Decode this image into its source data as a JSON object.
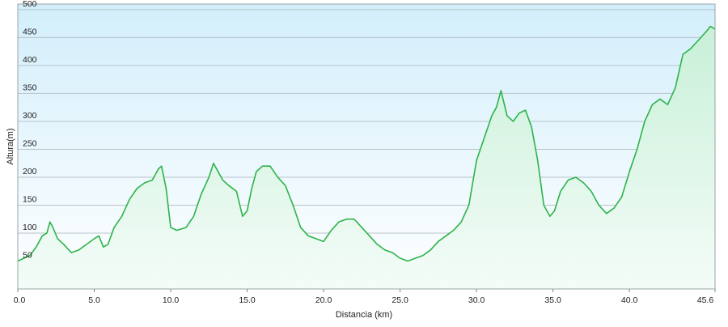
{
  "chart_data": {
    "type": "area",
    "xlabel": "Distancia  (km)",
    "ylabel": "Altura(m)",
    "xlim": [
      0,
      45.6
    ],
    "ylim": [
      0,
      510
    ],
    "x_ticks": [
      0,
      5,
      10,
      15,
      20,
      25,
      30,
      35,
      40,
      45.6
    ],
    "x_tick_labels": [
      "0.0",
      "5.0",
      "10.0",
      "15.0",
      "20.0",
      "25.0",
      "30.0",
      "35.0",
      "40.0",
      "45.6"
    ],
    "y_ticks": [
      50,
      100,
      150,
      200,
      250,
      300,
      350,
      400,
      450,
      500
    ],
    "y_tick_labels": [
      "50",
      "100",
      "150",
      "200",
      "250",
      "300",
      "350",
      "400",
      "450",
      "500"
    ],
    "grid": true,
    "colors": {
      "line": "#2db34a",
      "fill_top": "#c8f0d8",
      "fill_bottom": "#f4fcf8",
      "bg_top": "#d2eefb",
      "bg_bottom": "#ffffff"
    },
    "series": [
      {
        "x": [
          0,
          0.4,
          0.8,
          1.2,
          1.6,
          1.9,
          2.1,
          2.3,
          2.6,
          3.0,
          3.5,
          4.0,
          4.5,
          5.0,
          5.3,
          5.6,
          5.9,
          6.3,
          6.8,
          7.3,
          7.8,
          8.3,
          8.8,
          9.2,
          9.4,
          9.7,
          10.0,
          10.4,
          11.0,
          11.5,
          12.0,
          12.5,
          12.8,
          13.1,
          13.4,
          13.8,
          14.3,
          14.7,
          15.0,
          15.3,
          15.6,
          16.0,
          16.5,
          17.0,
          17.5,
          18.0,
          18.5,
          19.0,
          19.5,
          20.0,
          20.5,
          21.0,
          21.5,
          22.0,
          22.5,
          23.0,
          23.5,
          24.0,
          24.5,
          25.0,
          25.5,
          26.0,
          26.5,
          27.0,
          27.5,
          28.0,
          28.5,
          29.0,
          29.5,
          30.0,
          30.5,
          31.0,
          31.3,
          31.6,
          32.0,
          32.4,
          32.8,
          33.2,
          33.6,
          34.0,
          34.4,
          34.8,
          35.1,
          35.5,
          36.0,
          36.5,
          37.0,
          37.5,
          38.0,
          38.5,
          39.0,
          39.5,
          40.0,
          40.5,
          41.0,
          41.5,
          42.0,
          42.5,
          43.0,
          43.5,
          44.0,
          44.5,
          45.0,
          45.3,
          45.6
        ],
        "y": [
          50,
          55,
          60,
          75,
          95,
          100,
          120,
          110,
          90,
          80,
          65,
          70,
          80,
          90,
          95,
          75,
          80,
          110,
          130,
          160,
          180,
          190,
          195,
          215,
          220,
          180,
          110,
          105,
          110,
          130,
          170,
          200,
          225,
          210,
          195,
          185,
          175,
          130,
          140,
          180,
          210,
          220,
          220,
          200,
          185,
          150,
          110,
          95,
          90,
          85,
          105,
          120,
          125,
          125,
          110,
          95,
          80,
          70,
          65,
          55,
          50,
          55,
          60,
          70,
          85,
          95,
          105,
          120,
          150,
          230,
          270,
          310,
          325,
          355,
          310,
          300,
          315,
          320,
          290,
          230,
          150,
          130,
          140,
          175,
          195,
          200,
          190,
          175,
          150,
          135,
          145,
          165,
          210,
          250,
          300,
          330,
          340,
          330,
          360,
          420,
          430,
          445,
          460,
          470,
          465
        ]
      }
    ]
  }
}
